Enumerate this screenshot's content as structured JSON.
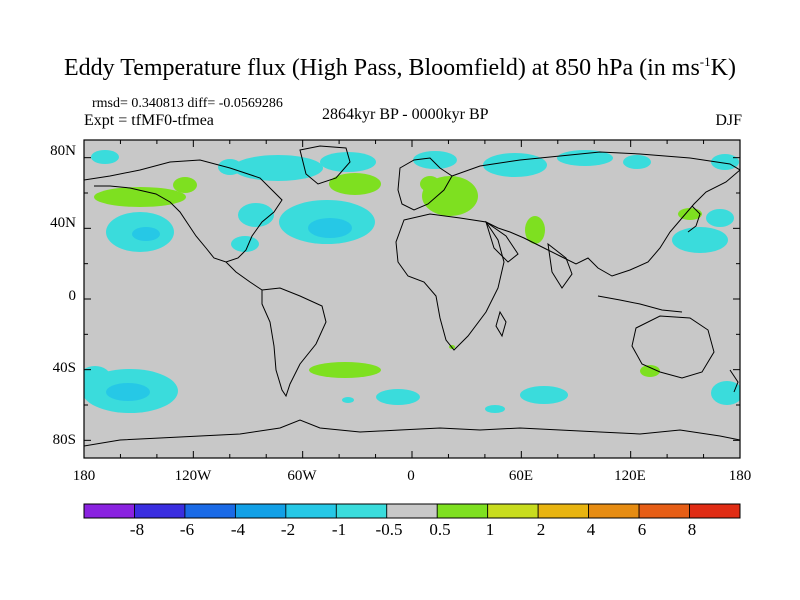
{
  "title": {
    "main": "Eddy Temperature flux (High Pass, Bloomfield) at 850 hPa (in ms",
    "sup": "-1",
    "end": "K)"
  },
  "stats": {
    "rmsd_text": "rmsd= 0.340813 diff= -0.0569286"
  },
  "experiment": "Expt = tfMF0-tfmea",
  "period": "2864kyr BP - 0000kyr BP",
  "season": "DJF",
  "map": {
    "projection": "cylindrical equidistant",
    "lon_range": [
      -180,
      180
    ],
    "lat_range": [
      -90,
      90
    ],
    "background_color": "#c8c8c8",
    "y_ticks": [
      "80N",
      "40N",
      "0",
      "40S",
      "80S"
    ],
    "x_ticks": [
      "180",
      "120W",
      "60W",
      "0",
      "60E",
      "120E",
      "180"
    ]
  },
  "colorbar": {
    "labels": [
      "-8",
      "-6",
      "-4",
      "-2",
      "-1",
      "-0.5",
      "0.5",
      "1",
      "2",
      "4",
      "6",
      "8"
    ],
    "colors": [
      "#8a22e0",
      "#3a2ee0",
      "#1a6ae6",
      "#12a0e6",
      "#26c8e6",
      "#3adcdc",
      "#c8c8c8",
      "#7ee020",
      "#c8dc1e",
      "#e8b410",
      "#e68c12",
      "#e65e16",
      "#e02c14"
    ]
  }
}
